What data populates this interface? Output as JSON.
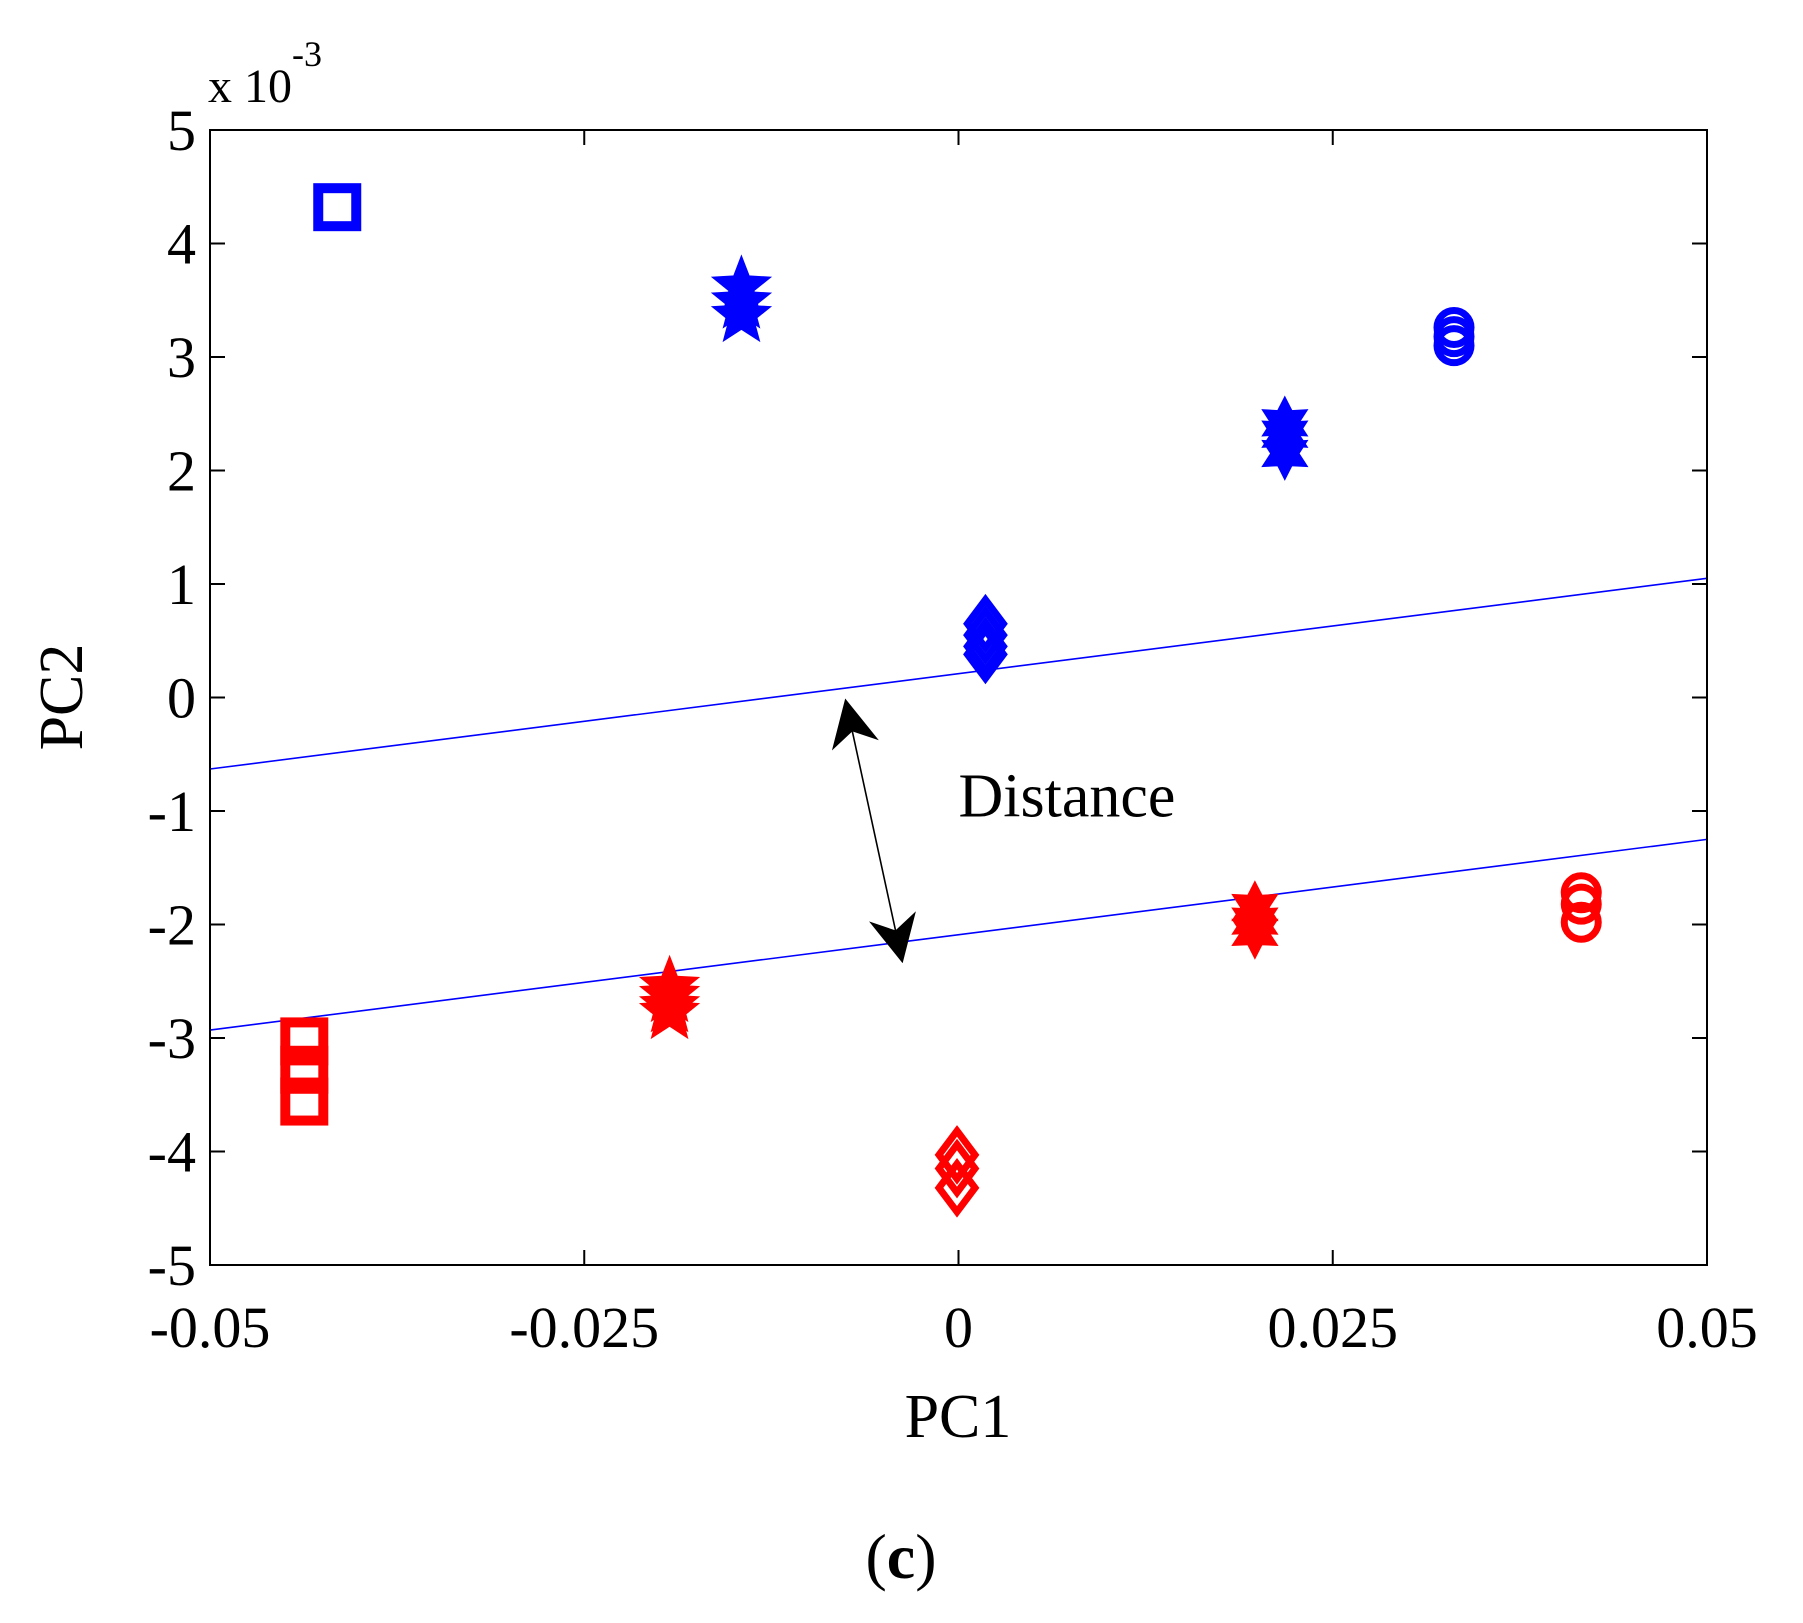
{
  "chart_data": {
    "type": "scatter",
    "title": "",
    "xlabel": "PC1",
    "ylabel": "PC2",
    "xlim": [
      -0.05,
      0.05
    ],
    "ylim": [
      -5,
      5
    ],
    "y_scale_label": "x 10",
    "y_scale_exponent": "-3",
    "xticks": [
      -0.05,
      -0.025,
      0,
      0.025,
      0.05
    ],
    "xtick_labels": [
      "-0.05",
      "-0.025",
      "0",
      "0.025",
      "0.05"
    ],
    "yticks": [
      -5,
      -4,
      -3,
      -2,
      -1,
      0,
      1,
      2,
      3,
      4,
      5
    ],
    "ytick_labels": [
      "-5",
      "-4",
      "-3",
      "-2",
      "-1",
      "0",
      "1",
      "2",
      "3",
      "4",
      "5"
    ],
    "grid": false,
    "colors": {
      "class_a": "#0000ff",
      "class_b": "#ff0000",
      "line": "#0000ff",
      "arrow": "#000000"
    },
    "series": [
      {
        "name": "blue-square",
        "color": "#0000ff",
        "marker": "square",
        "x": [
          -0.0415
        ],
        "y": [
          4.32
        ]
      },
      {
        "name": "blue-pentagram",
        "color": "#0000ff",
        "marker": "pentagram",
        "x": [
          -0.0145,
          -0.0145,
          -0.0145
        ],
        "y": [
          3.62,
          3.48,
          3.36
        ]
      },
      {
        "name": "blue-hexagram",
        "color": "#0000ff",
        "marker": "hexagram",
        "x": [
          0.0218,
          0.0218,
          0.0218
        ],
        "y": [
          2.42,
          2.32,
          2.15
        ]
      },
      {
        "name": "blue-circle",
        "color": "#0000ff",
        "marker": "circle",
        "x": [
          0.0331,
          0.0331,
          0.0331
        ],
        "y": [
          3.26,
          3.18,
          3.1
        ]
      },
      {
        "name": "blue-diamond",
        "color": "#0000ff",
        "marker": "diamond",
        "x": [
          0.0018,
          0.0018,
          0.0018,
          0.0018
        ],
        "y": [
          0.65,
          0.55,
          0.45,
          0.38
        ]
      },
      {
        "name": "red-square",
        "color": "#ff0000",
        "marker": "square",
        "x": [
          -0.0437,
          -0.0437,
          -0.0437
        ],
        "y": [
          -3.03,
          -3.28,
          -3.56
        ]
      },
      {
        "name": "red-pentagram",
        "color": "#ff0000",
        "marker": "pentagram",
        "x": [
          -0.0193,
          -0.0193,
          -0.0193,
          -0.0193
        ],
        "y": [
          -2.55,
          -2.63,
          -2.72,
          -2.78
        ]
      },
      {
        "name": "red-hexagram",
        "color": "#ff0000",
        "marker": "hexagram",
        "x": [
          0.0198,
          0.0198,
          0.0198
        ],
        "y": [
          -1.85,
          -1.97,
          -2.07
        ]
      },
      {
        "name": "red-circle",
        "color": "#ff0000",
        "marker": "circle",
        "x": [
          0.0416,
          0.0416,
          0.0416
        ],
        "y": [
          -1.72,
          -1.82,
          -1.98
        ]
      },
      {
        "name": "red-diamond",
        "color": "#ff0000",
        "marker": "diamond",
        "x": [
          -0.0001,
          -0.0001,
          -0.0001
        ],
        "y": [
          -4.03,
          -4.15,
          -4.32
        ]
      }
    ],
    "lines": [
      {
        "name": "upper-boundary",
        "x": [
          -0.05,
          0.05
        ],
        "y": [
          -0.63,
          1.05
        ]
      },
      {
        "name": "lower-boundary",
        "x": [
          -0.05,
          0.05
        ],
        "y": [
          -2.93,
          -1.25
        ]
      }
    ],
    "annotations": [
      {
        "text": "Distance",
        "x": 0.0,
        "y": -1.05
      },
      {
        "name": "distance-arrow",
        "from": [
          -0.0075,
          -0.05
        ],
        "to": [
          -0.0038,
          -2.3
        ]
      }
    ]
  },
  "caption": {
    "open": "(",
    "letter": "c",
    "close": ")"
  }
}
